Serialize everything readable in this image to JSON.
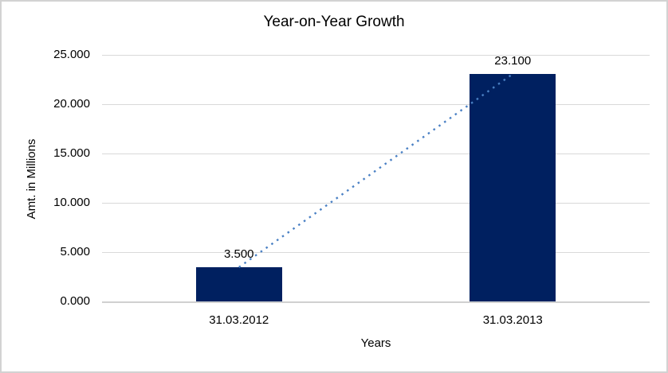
{
  "chart_data": {
    "type": "bar",
    "title": "Year-on-Year Growth",
    "xlabel": "Years",
    "ylabel": "Amt. in Millions",
    "categories": [
      "31.03.2012",
      "31.03.2013"
    ],
    "values": [
      3500,
      23100
    ],
    "value_labels": [
      "3.500",
      "23.100"
    ],
    "ylim": [
      0,
      25000
    ],
    "ytick_labels": [
      "0.000",
      "5.000",
      "10.000",
      "15.000",
      "20.000",
      "25.000"
    ],
    "grid": true,
    "legend": false,
    "trendline": {
      "style": "dotted",
      "connects": "bar tops"
    },
    "colors": {
      "bar": "#002060",
      "trendline": "#4A80C4",
      "gridline": "#D9D9D9",
      "axis_line": "#D0D0D0",
      "chart_border": "#D2D2D2",
      "text": "#000000",
      "background": "#FFFFFF"
    }
  }
}
